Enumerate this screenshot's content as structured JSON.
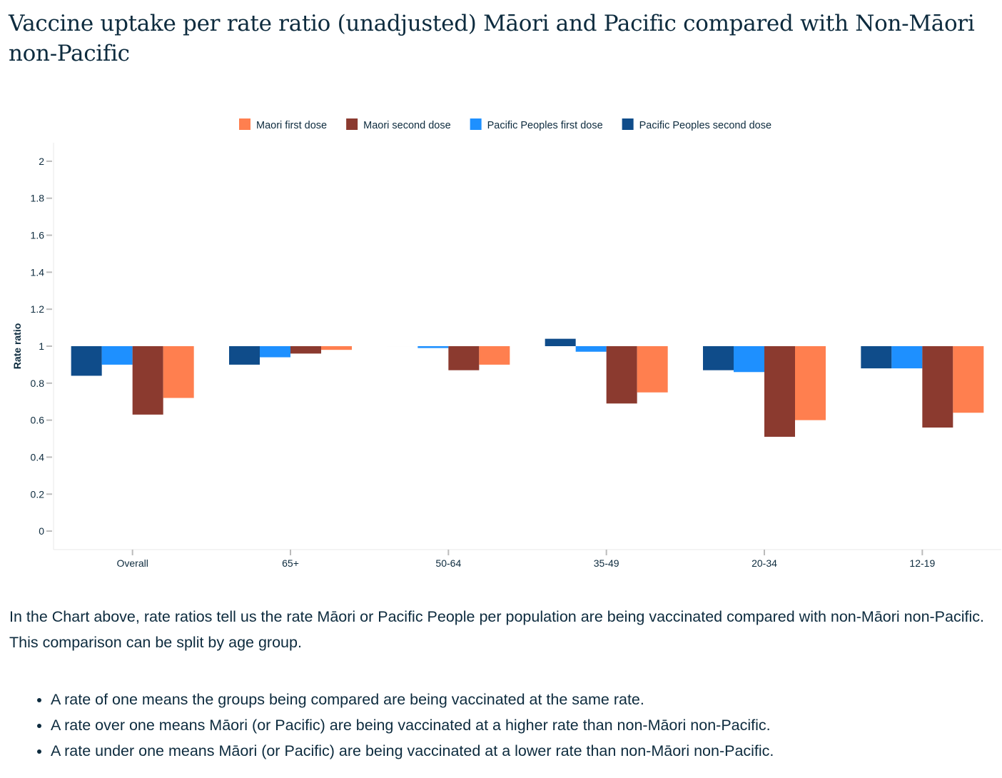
{
  "title": "Vaccine uptake per rate ratio (unadjusted) Māori and Pacific compared with Non-Māori non-Pacific",
  "chart_data": {
    "type": "bar",
    "title": "Vaccine uptake per rate ratio (unadjusted) Māori and Pacific compared with Non-Māori non-Pacific",
    "xlabel": "",
    "ylabel": "Rate ratio",
    "ylim": [
      -0.1,
      2.1
    ],
    "base": 1,
    "yticks": [
      0,
      0.2,
      0.4,
      0.6,
      0.8,
      1,
      1.2,
      1.4,
      1.6,
      1.8,
      2
    ],
    "ytick_labels": [
      "0",
      "0.2",
      "0.4",
      "0.6",
      "0.8",
      "1",
      "1.2",
      "1.4",
      "1.6",
      "1.8",
      "2"
    ],
    "legend_position": "top",
    "categories": [
      "Overall",
      "65+",
      "50-64",
      "35-49",
      "20-34",
      "12-19"
    ],
    "series": [
      {
        "name": "Pacific Peoples second dose",
        "color": "#0f4c8a",
        "values": [
          0.84,
          0.9,
          1.0,
          1.04,
          0.87,
          0.88
        ]
      },
      {
        "name": "Pacific Peoples first dose",
        "color": "#1e90ff",
        "values": [
          0.9,
          0.94,
          0.99,
          0.97,
          0.86,
          0.88
        ]
      },
      {
        "name": "Maori second dose",
        "color": "#8b3a2f",
        "values": [
          0.63,
          0.96,
          0.87,
          0.69,
          0.51,
          0.56
        ]
      },
      {
        "name": "Maori first dose",
        "color": "#ff7f4f",
        "values": [
          0.72,
          0.98,
          0.9,
          0.75,
          0.6,
          0.64
        ]
      }
    ],
    "legend_order": [
      3,
      2,
      1,
      0
    ]
  },
  "description": "In the Chart above, rate ratios tell us the rate Māori or Pacific People per population are being vaccinated compared with non-Māori non-Pacific. This comparison can be split by age group.",
  "bullets": [
    "A rate of one means the groups being compared are being vaccinated at the same rate.",
    "A rate over one means Māori (or Pacific) are being vaccinated at a higher rate than non-Māori non-Pacific.",
    "A rate under one means Māori (or Pacific) are being vaccinated at a lower rate than non-Māori non-Pacific."
  ]
}
